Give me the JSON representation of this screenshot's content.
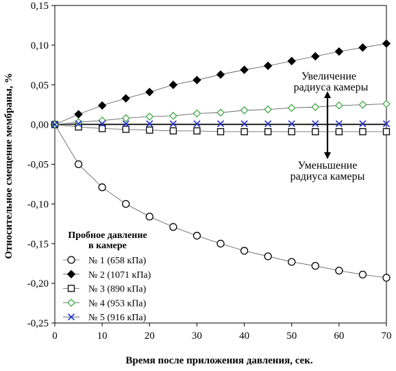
{
  "chart_data": {
    "type": "scatter",
    "xlabel": "Время после приложения давления, сек.",
    "ylabel": "Относительное смещение мембраны, %",
    "xlim": [
      0,
      70
    ],
    "ylim": [
      -0.25,
      0.15
    ],
    "x_ticks": [
      "0",
      "10",
      "20",
      "30",
      "40",
      "50",
      "60",
      "70"
    ],
    "y_ticks": [
      "0,15",
      "0,10",
      "0,05",
      "0,00",
      "-0,05",
      "-0,10",
      "-0,15",
      "-0,20",
      "-0,25"
    ],
    "grid": false,
    "legend": {
      "title": [
        "Пробное давление",
        "в камере"
      ],
      "placement": "bottom-left"
    },
    "annotations": {
      "increase": [
        "Увеличение",
        "радиуса камеры"
      ],
      "decrease": [
        "Уменьшение",
        "радиуса камеры"
      ]
    },
    "series": [
      {
        "name": "№ 1  (658 кПа)",
        "marker": "circle-open",
        "color": "#000000",
        "x": [
          0,
          5,
          10,
          15,
          20,
          25,
          30,
          35,
          40,
          45,
          50,
          55,
          60,
          65,
          70
        ],
        "y": [
          0.0,
          -0.05,
          -0.079,
          -0.1,
          -0.116,
          -0.129,
          -0.14,
          -0.15,
          -0.159,
          -0.166,
          -0.173,
          -0.178,
          -0.184,
          -0.189,
          -0.193
        ]
      },
      {
        "name": "№ 2  (1071 кПа)",
        "marker": "diamond-filled",
        "color": "#000000",
        "x": [
          0,
          5,
          10,
          15,
          20,
          25,
          30,
          35,
          40,
          45,
          50,
          55,
          60,
          65,
          70
        ],
        "y": [
          0.0,
          0.013,
          0.024,
          0.033,
          0.041,
          0.05,
          0.056,
          0.063,
          0.069,
          0.074,
          0.08,
          0.086,
          0.092,
          0.097,
          0.102
        ]
      },
      {
        "name": "№ 3  (890 кПа)",
        "marker": "square-open",
        "color": "#000000",
        "x": [
          0,
          5,
          10,
          15,
          20,
          25,
          30,
          35,
          40,
          45,
          50,
          55,
          60,
          65,
          70
        ],
        "y": [
          0.0,
          -0.003,
          -0.005,
          -0.006,
          -0.007,
          -0.008,
          -0.008,
          -0.009,
          -0.009,
          -0.009,
          -0.009,
          -0.009,
          -0.009,
          -0.009,
          -0.009
        ]
      },
      {
        "name": "№ 4  (953 кПа)",
        "marker": "diamond-open",
        "color": "#3ea843",
        "x": [
          0,
          5,
          10,
          15,
          20,
          25,
          30,
          35,
          40,
          45,
          50,
          55,
          60,
          65,
          70
        ],
        "y": [
          0.0,
          0.003,
          0.005,
          0.008,
          0.01,
          0.011,
          0.014,
          0.015,
          0.018,
          0.019,
          0.021,
          0.022,
          0.024,
          0.025,
          0.026
        ]
      },
      {
        "name": "№ 5  (916 кПа)",
        "marker": "x",
        "color": "#1f2bcc",
        "x": [
          0,
          5,
          10,
          15,
          20,
          25,
          30,
          35,
          40,
          45,
          50,
          55,
          60,
          65,
          70
        ],
        "y": [
          0.0,
          0.001,
          0.001,
          0.001,
          0.001,
          0.001,
          0.001,
          0.001,
          0.001,
          0.001,
          0.001,
          0.001,
          0.001,
          0.001,
          0.001
        ]
      }
    ]
  }
}
